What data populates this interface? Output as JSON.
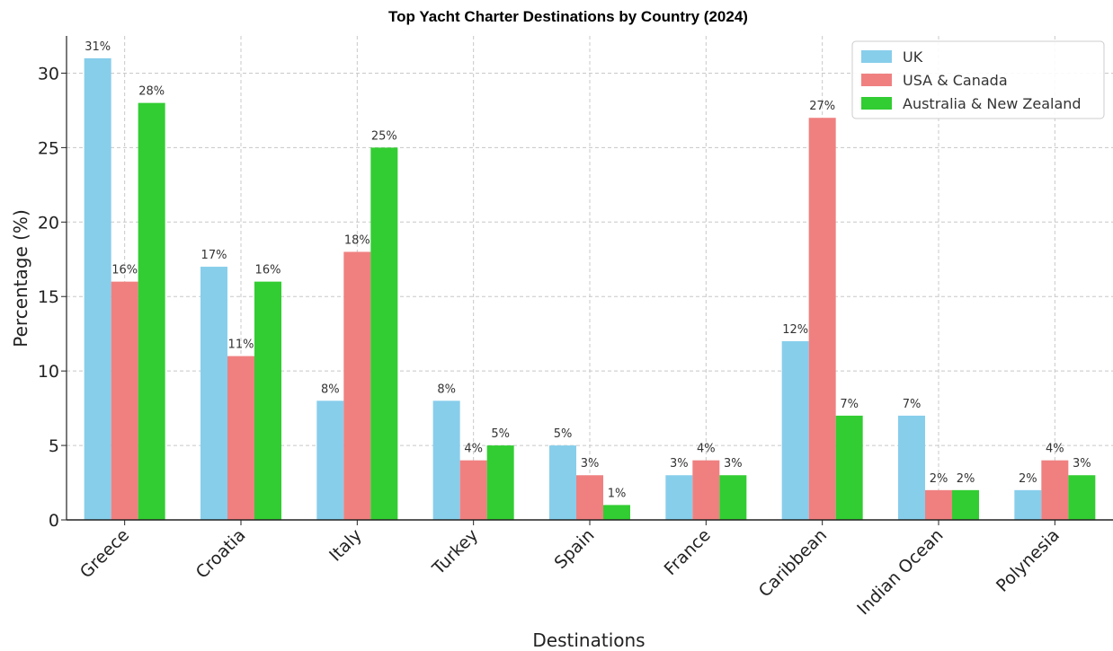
{
  "chart_data": {
    "type": "bar",
    "title": "Top Yacht Charter Destinations by Country (2024)",
    "xlabel": "Destinations",
    "ylabel": "Percentage (%)",
    "ylim": [
      0,
      32.5
    ],
    "yticks": [
      0,
      5,
      10,
      15,
      20,
      25,
      30
    ],
    "grid": true,
    "legend_position": "top-right",
    "categories": [
      "Greece",
      "Croatia",
      "Italy",
      "Turkey",
      "Spain",
      "France",
      "Caribbean",
      "Indian Ocean",
      "Polynesia"
    ],
    "series": [
      {
        "name": "UK",
        "color": "#87ceeb",
        "values": [
          31,
          17,
          8,
          8,
          5,
          3,
          12,
          7,
          2
        ]
      },
      {
        "name": "USA & Canada",
        "color": "#f08080",
        "values": [
          16,
          11,
          18,
          4,
          3,
          4,
          27,
          2,
          4
        ]
      },
      {
        "name": "Australia & New Zealand",
        "color": "#32cd32",
        "values": [
          28,
          16,
          25,
          5,
          1,
          3,
          7,
          2,
          3
        ]
      }
    ],
    "value_suffix": "%"
  }
}
